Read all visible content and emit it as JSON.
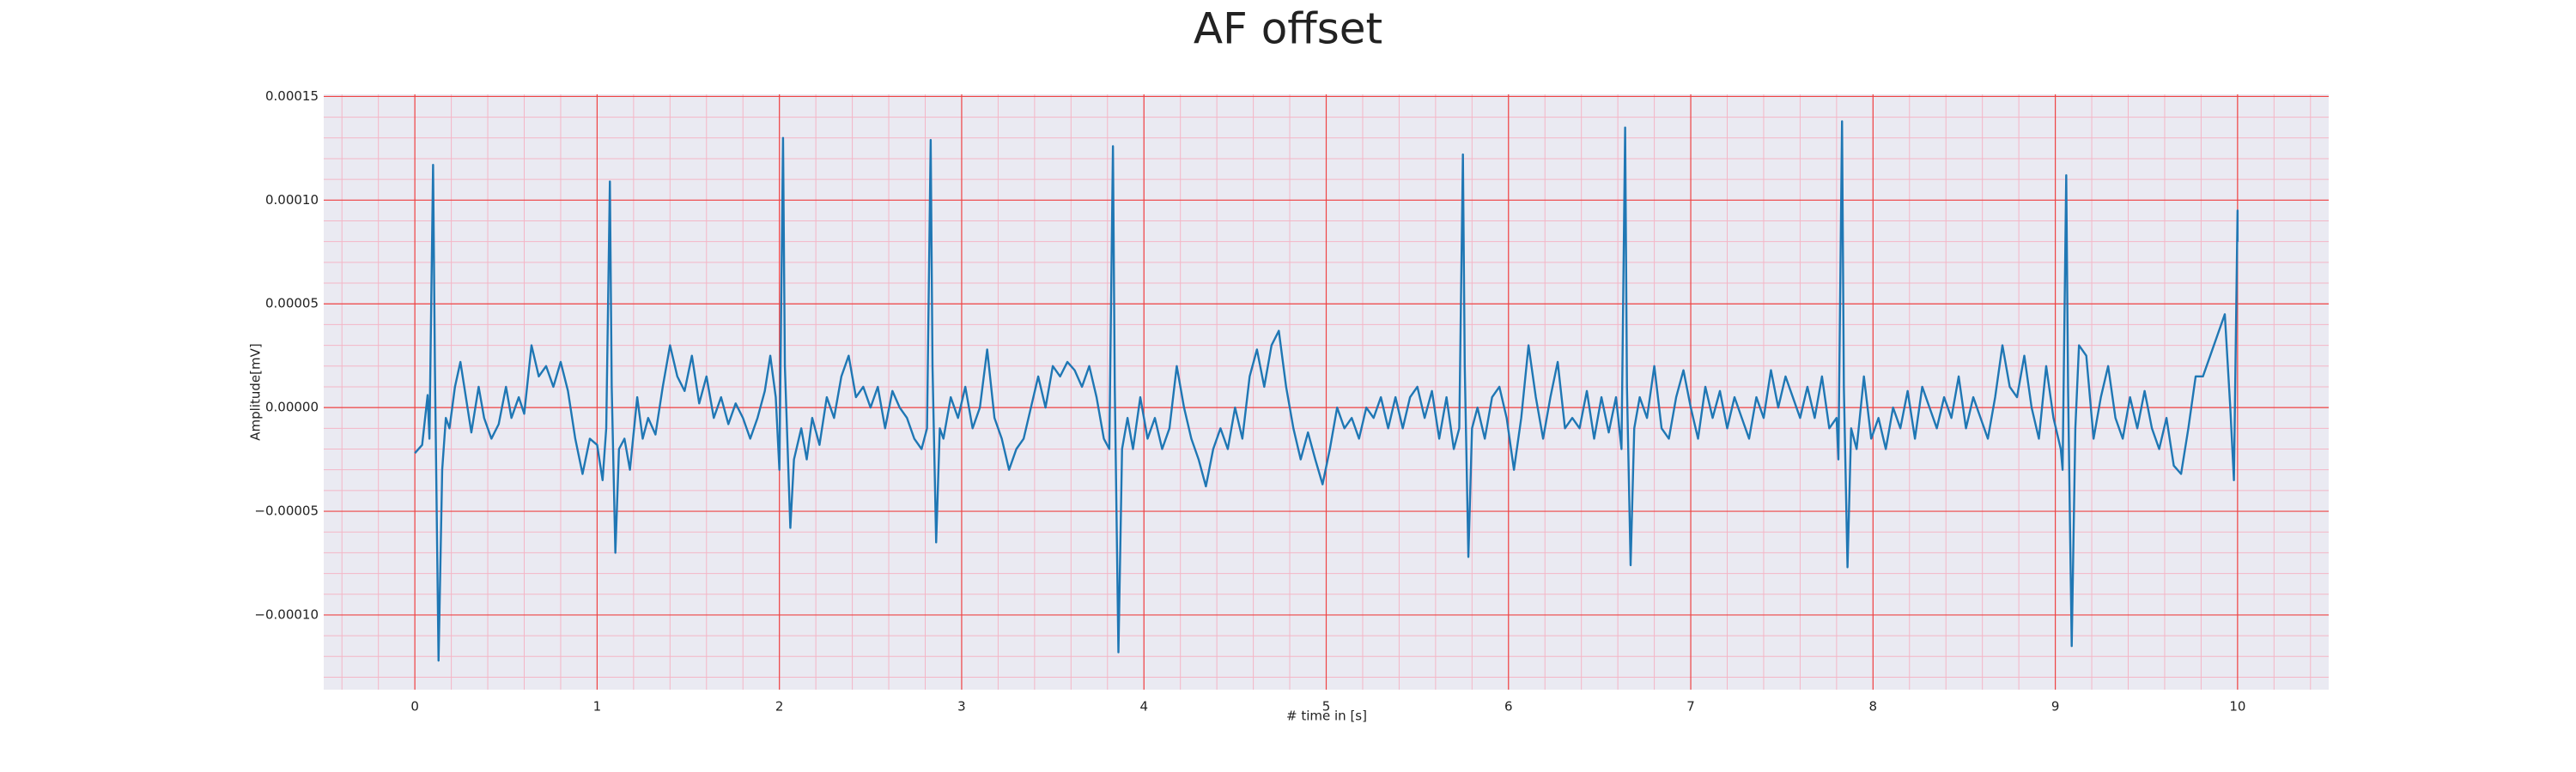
{
  "chart_data": {
    "type": "line",
    "title": "AF offset",
    "x_label": "# time in [s]",
    "y_label": "Amplitude[mV]",
    "color": "#1f77b4",
    "grid": true,
    "minor_grid": true,
    "xlim": [
      -0.5,
      10.5
    ],
    "xticks": [
      0,
      1,
      2,
      3,
      4,
      5,
      6,
      7,
      8,
      9,
      10
    ],
    "ylim": [
      -0.000136,
      0.000151
    ],
    "yticks": [
      {
        "value": -0.0001,
        "label": "−0.00010"
      },
      {
        "value": -5e-05,
        "label": "−0.00005"
      },
      {
        "value": 0,
        "label": "0.00000"
      },
      {
        "value": 5e-05,
        "label": "0.00005"
      },
      {
        "value": 0.0001,
        "label": "0.00010"
      },
      {
        "value": 0.00015,
        "label": "0.00015"
      }
    ],
    "x": [
      0.0,
      0.04,
      0.07,
      0.08,
      0.1,
      0.11,
      0.13,
      0.15,
      0.17,
      0.19,
      0.22,
      0.25,
      0.28,
      0.31,
      0.35,
      0.38,
      0.42,
      0.46,
      0.5,
      0.53,
      0.57,
      0.6,
      0.64,
      0.68,
      0.72,
      0.76,
      0.8,
      0.84,
      0.88,
      0.92,
      0.96,
      1.0,
      1.03,
      1.05,
      1.07,
      1.08,
      1.1,
      1.12,
      1.15,
      1.18,
      1.22,
      1.25,
      1.28,
      1.32,
      1.36,
      1.4,
      1.44,
      1.48,
      1.52,
      1.56,
      1.6,
      1.64,
      1.68,
      1.72,
      1.76,
      1.8,
      1.84,
      1.88,
      1.92,
      1.95,
      1.98,
      2.0,
      2.02,
      2.03,
      2.06,
      2.08,
      2.12,
      2.15,
      2.18,
      2.22,
      2.26,
      2.3,
      2.34,
      2.38,
      2.42,
      2.46,
      2.5,
      2.54,
      2.58,
      2.62,
      2.66,
      2.7,
      2.74,
      2.78,
      2.81,
      2.83,
      2.84,
      2.86,
      2.88,
      2.9,
      2.94,
      2.98,
      3.02,
      3.06,
      3.1,
      3.14,
      3.18,
      3.22,
      3.26,
      3.3,
      3.34,
      3.38,
      3.42,
      3.46,
      3.5,
      3.54,
      3.58,
      3.62,
      3.66,
      3.7,
      3.74,
      3.78,
      3.81,
      3.83,
      3.84,
      3.86,
      3.88,
      3.91,
      3.94,
      3.98,
      4.02,
      4.06,
      4.1,
      4.14,
      4.18,
      4.22,
      4.26,
      4.3,
      4.34,
      4.38,
      4.42,
      4.46,
      4.5,
      4.54,
      4.58,
      4.62,
      4.66,
      4.7,
      4.74,
      4.78,
      4.82,
      4.86,
      4.9,
      4.94,
      4.98,
      5.02,
      5.06,
      5.1,
      5.14,
      5.18,
      5.22,
      5.26,
      5.3,
      5.34,
      5.38,
      5.42,
      5.46,
      5.5,
      5.54,
      5.58,
      5.62,
      5.66,
      5.7,
      5.73,
      5.75,
      5.76,
      5.78,
      5.8,
      5.83,
      5.87,
      5.91,
      5.95,
      5.99,
      6.03,
      6.07,
      6.11,
      6.15,
      6.19,
      6.23,
      6.27,
      6.31,
      6.35,
      6.39,
      6.43,
      6.47,
      6.51,
      6.55,
      6.59,
      6.62,
      6.64,
      6.65,
      6.67,
      6.69,
      6.72,
      6.76,
      6.8,
      6.84,
      6.88,
      6.92,
      6.96,
      7.0,
      7.04,
      7.08,
      7.12,
      7.16,
      7.2,
      7.24,
      7.28,
      7.32,
      7.36,
      7.4,
      7.44,
      7.48,
      7.52,
      7.56,
      7.6,
      7.64,
      7.68,
      7.72,
      7.76,
      7.8,
      7.81,
      7.83,
      7.84,
      7.86,
      7.88,
      7.91,
      7.95,
      7.99,
      8.03,
      8.07,
      8.11,
      8.15,
      8.19,
      8.23,
      8.27,
      8.31,
      8.35,
      8.39,
      8.43,
      8.47,
      8.51,
      8.55,
      8.59,
      8.63,
      8.67,
      8.71,
      8.75,
      8.79,
      8.83,
      8.87,
      8.91,
      8.95,
      8.99,
      9.03,
      9.04,
      9.06,
      9.07,
      9.09,
      9.11,
      9.13,
      9.17,
      9.21,
      9.25,
      9.29,
      9.33,
      9.37,
      9.41,
      9.45,
      9.49,
      9.53,
      9.57,
      9.61,
      9.65,
      9.69,
      9.73,
      9.77,
      9.81,
      9.85,
      9.89,
      9.93,
      9.96,
      9.98,
      10.0,
      10.0
    ],
    "values": [
      -2.2e-05,
      -1.8e-05,
      6e-06,
      -1.5e-05,
      0.000117,
      2e-05,
      -0.000122,
      -3e-05,
      -5e-06,
      -1e-05,
      1e-05,
      2.2e-05,
      5e-06,
      -1.2e-05,
      1e-05,
      -5e-06,
      -1.5e-05,
      -8e-06,
      1e-05,
      -5e-06,
      5e-06,
      -3e-06,
      3e-05,
      1.5e-05,
      2e-05,
      1e-05,
      2.2e-05,
      8e-06,
      -1.5e-05,
      -3.2e-05,
      -1.5e-05,
      -1.8e-05,
      -3.5e-05,
      -1e-05,
      0.000109,
      1e-05,
      -7e-05,
      -2e-05,
      -1.5e-05,
      -3e-05,
      5e-06,
      -1.5e-05,
      -5e-06,
      -1.3e-05,
      1e-05,
      3e-05,
      1.5e-05,
      8e-06,
      2.5e-05,
      2e-06,
      1.5e-05,
      -5e-06,
      5e-06,
      -8e-06,
      2e-06,
      -5e-06,
      -1.5e-05,
      -5e-06,
      8e-06,
      2.5e-05,
      5e-06,
      -3e-05,
      0.00013,
      2e-05,
      -5.8e-05,
      -2.5e-05,
      -1e-05,
      -2.5e-05,
      -5e-06,
      -1.8e-05,
      5e-06,
      -5e-06,
      1.5e-05,
      2.5e-05,
      5e-06,
      1e-05,
      0,
      1e-05,
      -1e-05,
      8e-06,
      0,
      -5e-06,
      -1.5e-05,
      -2e-05,
      -1e-05,
      0.000129,
      2e-05,
      -6.5e-05,
      -1e-05,
      -1.5e-05,
      5e-06,
      -5e-06,
      1e-05,
      -1e-05,
      0,
      2.8e-05,
      -5e-06,
      -1.5e-05,
      -3e-05,
      -2e-05,
      -1.5e-05,
      0,
      1.5e-05,
      0,
      2e-05,
      1.5e-05,
      2.2e-05,
      1.8e-05,
      1e-05,
      2e-05,
      5e-06,
      -1.5e-05,
      -2e-05,
      0.000126,
      1e-05,
      -0.000118,
      -2e-05,
      -5e-06,
      -2e-05,
      5e-06,
      -1.5e-05,
      -5e-06,
      -2e-05,
      -1e-05,
      2e-05,
      0,
      -1.5e-05,
      -2.5e-05,
      -3.8e-05,
      -2e-05,
      -1e-05,
      -2e-05,
      0,
      -1.5e-05,
      1.5e-05,
      2.8e-05,
      1e-05,
      3e-05,
      3.7e-05,
      1e-05,
      -1e-05,
      -2.5e-05,
      -1.2e-05,
      -2.5e-05,
      -3.7e-05,
      -2e-05,
      0,
      -1e-05,
      -5e-06,
      -1.5e-05,
      0,
      -5e-06,
      5e-06,
      -1e-05,
      5e-06,
      -1e-05,
      5e-06,
      1e-05,
      -5e-06,
      8e-06,
      -1.5e-05,
      5e-06,
      -2e-05,
      -1e-05,
      0.000122,
      2e-05,
      -7.2e-05,
      -1e-05,
      0,
      -1.5e-05,
      5e-06,
      1e-05,
      -5e-06,
      -3e-05,
      -5e-06,
      3e-05,
      5e-06,
      -1.5e-05,
      5e-06,
      2.2e-05,
      -1e-05,
      -5e-06,
      -1e-05,
      8e-06,
      -1.5e-05,
      5e-06,
      -1.2e-05,
      5e-06,
      -2e-05,
      0.000135,
      1e-05,
      -7.6e-05,
      -1e-05,
      5e-06,
      -5e-06,
      2e-05,
      -1e-05,
      -1.5e-05,
      5e-06,
      1.8e-05,
      0,
      -1.5e-05,
      1e-05,
      -5e-06,
      8e-06,
      -1e-05,
      5e-06,
      -5e-06,
      -1.5e-05,
      5e-06,
      -5e-06,
      1.8e-05,
      0,
      1.5e-05,
      5e-06,
      -5e-06,
      1e-05,
      -5e-06,
      1.5e-05,
      -1e-05,
      -5e-06,
      -2.5e-05,
      0.000138,
      1e-05,
      -7.7e-05,
      -1e-05,
      -2e-05,
      1.5e-05,
      -1.5e-05,
      -5e-06,
      -2e-05,
      0,
      -1e-05,
      8e-06,
      -1.5e-05,
      1e-05,
      0,
      -1e-05,
      5e-06,
      -5e-06,
      1.5e-05,
      -1e-05,
      5e-06,
      -5e-06,
      -1.5e-05,
      5e-06,
      3e-05,
      1e-05,
      5e-06,
      2.5e-05,
      0,
      -1.5e-05,
      2e-05,
      -5e-06,
      -2e-05,
      -3e-05,
      0.000112,
      1e-05,
      -0.000115,
      -1e-05,
      3e-05,
      2.5e-05,
      -1.5e-05,
      5e-06,
      2e-05,
      -5e-06,
      -1.5e-05,
      5e-06,
      -1e-05,
      8e-06,
      -1e-05,
      -2e-05,
      -5e-06,
      -2.8e-05,
      -3.2e-05,
      -1e-05,
      1.5e-05,
      1.5e-05,
      2.5e-05,
      3.5e-05,
      4.5e-05,
      0,
      -3.5e-05,
      9.5e-05,
      8e-05
    ]
  }
}
